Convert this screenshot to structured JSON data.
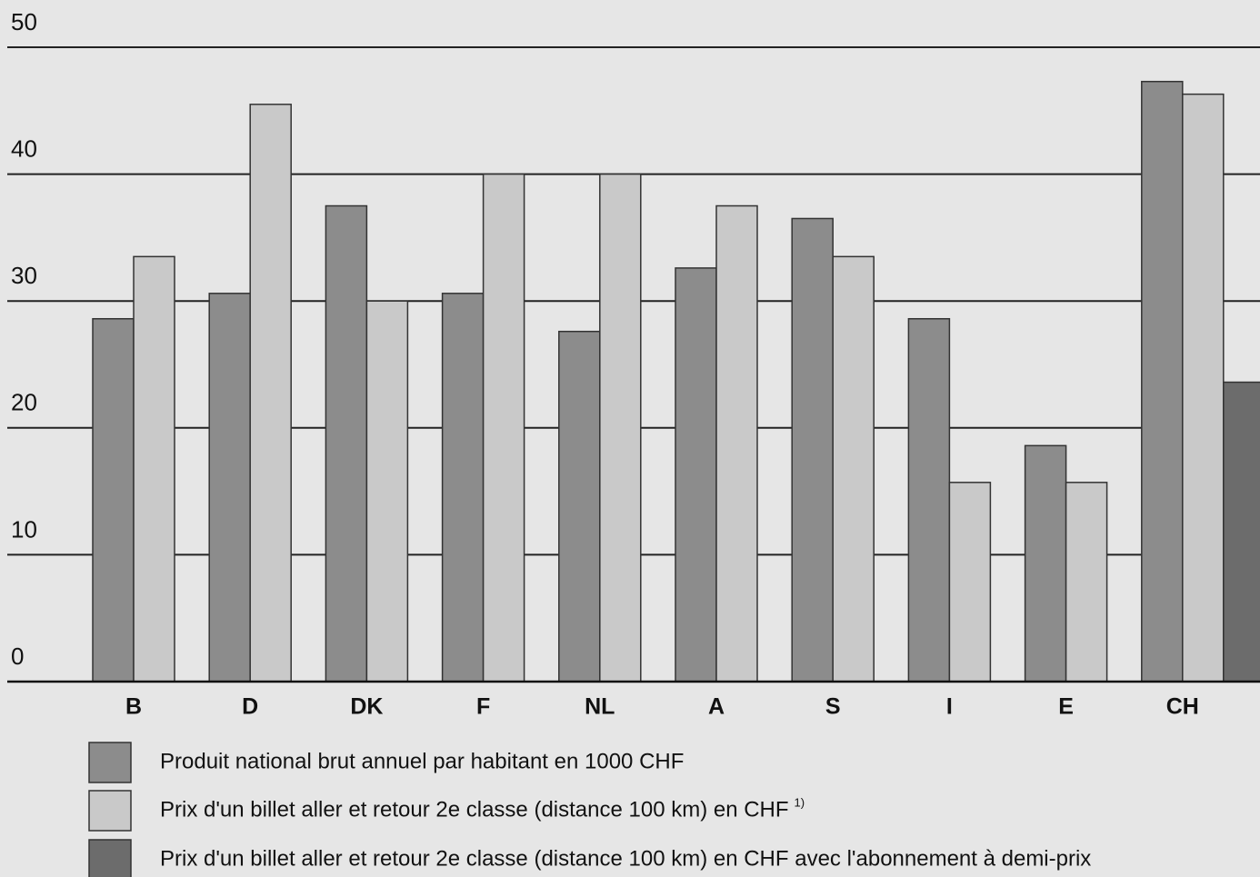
{
  "chart_data": {
    "type": "bar",
    "categories": [
      "B",
      "D",
      "DK",
      "F",
      "NL",
      "A",
      "S",
      "I",
      "E",
      "CH"
    ],
    "series": [
      {
        "name": "Produit national brut annuel par habitant en 1000 CHF",
        "color": "#8c8c8c",
        "values": [
          28.6,
          30.6,
          37.5,
          30.6,
          27.6,
          32.6,
          36.5,
          28.6,
          18.6,
          47.3
        ]
      },
      {
        "name": "Prix d'un billet aller et retour 2e classe (distance 100 km) en CHF",
        "color": "#c9c9c9",
        "values": [
          33.5,
          45.5,
          30,
          40,
          40,
          37.5,
          33.5,
          15.7,
          15.7,
          46.3
        ]
      },
      {
        "name": "Prix d'un billet aller et retour 2e classe (distance 100 km) en CHF avec l'abonnement à demi-prix",
        "color": "#6c6c6c",
        "values": [
          null,
          null,
          null,
          null,
          null,
          null,
          null,
          null,
          null,
          23.6
        ]
      }
    ],
    "footnote_mark": "1)",
    "ylim": [
      0,
      50
    ],
    "yticks": [
      0,
      10,
      20,
      30,
      40,
      50
    ],
    "grid": true
  }
}
